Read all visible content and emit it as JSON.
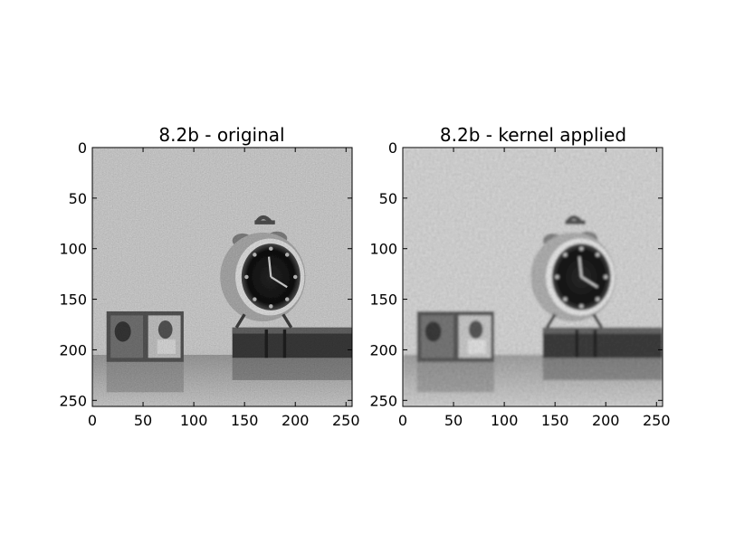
{
  "panels": [
    {
      "id": "original",
      "title": "8.2b - original",
      "x_ticks": [
        0,
        50,
        100,
        150,
        200,
        250
      ],
      "y_ticks": [
        0,
        50,
        100,
        150,
        200,
        250
      ],
      "x_range": [
        0,
        256
      ],
      "y_range": [
        0,
        256
      ],
      "image_content": "noisy grayscale photo of an alarm clock on books with a picture frame",
      "blurred": false
    },
    {
      "id": "kernel",
      "title": "8.2b - kernel applied",
      "x_ticks": [
        0,
        50,
        100,
        150,
        200,
        250
      ],
      "y_ticks": [
        0,
        50,
        100,
        150,
        200,
        250
      ],
      "x_range": [
        0,
        256
      ],
      "y_range": [
        0,
        256
      ],
      "image_content": "smoothed grayscale photo of an alarm clock on books with a picture frame",
      "blurred": true
    }
  ]
}
